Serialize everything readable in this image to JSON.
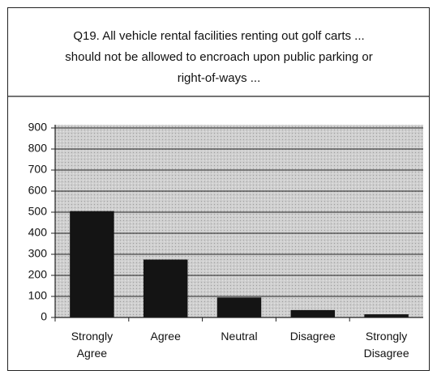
{
  "chart_data": {
    "type": "bar",
    "title": "Q19. All vehicle rental facilities renting out golf carts ... should not be allowed to encroach upon public parking or right-of-ways ...",
    "categories": [
      "Strongly Agree",
      "Agree",
      "Neutral",
      "Disagree",
      "Strongly Disagree"
    ],
    "values": [
      505,
      275,
      95,
      35,
      15
    ],
    "color": "#141414",
    "ylim": [
      0,
      900
    ],
    "yticks": [
      0,
      100,
      200,
      300,
      400,
      500,
      600,
      700,
      800,
      900
    ],
    "grid": true
  }
}
